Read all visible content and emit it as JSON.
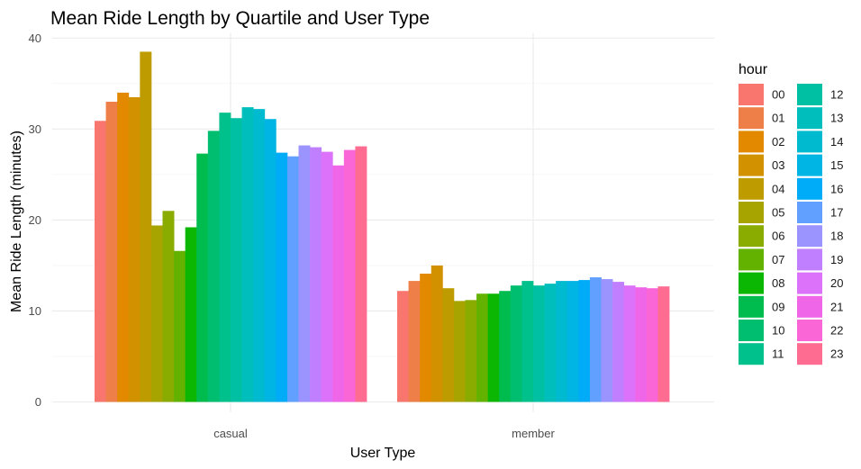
{
  "chart_data": {
    "type": "bar",
    "title": "Mean Ride Length by Quartile and User Type",
    "xlabel": "User Type",
    "ylabel": "Mean Ride Length (minutes)",
    "categories": [
      "casual",
      "member"
    ],
    "ylim": [
      0,
      40
    ],
    "yticks": [
      0,
      10,
      20,
      30,
      40
    ],
    "grid": true,
    "legend": {
      "title": "hour",
      "placement": "right",
      "columns": 2
    },
    "series": [
      {
        "name": "00",
        "color": "#F8766D",
        "values": [
          30.9,
          12.2
        ]
      },
      {
        "name": "01",
        "color": "#EF7F48",
        "values": [
          33.0,
          13.3
        ]
      },
      {
        "name": "02",
        "color": "#E38900",
        "values": [
          34.0,
          14.1
        ]
      },
      {
        "name": "03",
        "color": "#D29200",
        "values": [
          33.5,
          15.0
        ]
      },
      {
        "name": "04",
        "color": "#BE9C00",
        "values": [
          38.5,
          12.5
        ]
      },
      {
        "name": "05",
        "color": "#A7A400",
        "values": [
          19.4,
          11.1
        ]
      },
      {
        "name": "06",
        "color": "#8AAB00",
        "values": [
          21.0,
          11.2
        ]
      },
      {
        "name": "07",
        "color": "#64B200",
        "values": [
          16.6,
          11.9
        ]
      },
      {
        "name": "08",
        "color": "#0BB702",
        "values": [
          19.2,
          11.9
        ]
      },
      {
        "name": "09",
        "color": "#00BB4E",
        "values": [
          27.3,
          12.2
        ]
      },
      {
        "name": "10",
        "color": "#00BE6F",
        "values": [
          29.8,
          12.8
        ]
      },
      {
        "name": "11",
        "color": "#00C08B",
        "values": [
          31.8,
          13.3
        ]
      },
      {
        "name": "12",
        "color": "#00C0A4",
        "values": [
          31.2,
          12.8
        ]
      },
      {
        "name": "13",
        "color": "#00BEBB",
        "values": [
          32.4,
          13.0
        ]
      },
      {
        "name": "14",
        "color": "#00BAD0",
        "values": [
          32.2,
          13.3
        ]
      },
      {
        "name": "15",
        "color": "#00B4E4",
        "values": [
          31.1,
          13.3
        ]
      },
      {
        "name": "16",
        "color": "#00ABF7",
        "values": [
          27.4,
          13.4
        ]
      },
      {
        "name": "17",
        "color": "#61A0FF",
        "values": [
          27.0,
          13.7
        ]
      },
      {
        "name": "18",
        "color": "#9B94FF",
        "values": [
          28.2,
          13.5
        ]
      },
      {
        "name": "19",
        "color": "#C07FFF",
        "values": [
          28.0,
          13.2
        ]
      },
      {
        "name": "20",
        "color": "#DC72F9",
        "values": [
          27.5,
          12.8
        ]
      },
      {
        "name": "21",
        "color": "#F066E9",
        "values": [
          26.0,
          12.6
        ]
      },
      {
        "name": "22",
        "color": "#FA66D6",
        "values": [
          27.7,
          12.5
        ]
      },
      {
        "name": "23",
        "color": "#FF6C91",
        "values": [
          28.1,
          12.7
        ]
      }
    ]
  }
}
